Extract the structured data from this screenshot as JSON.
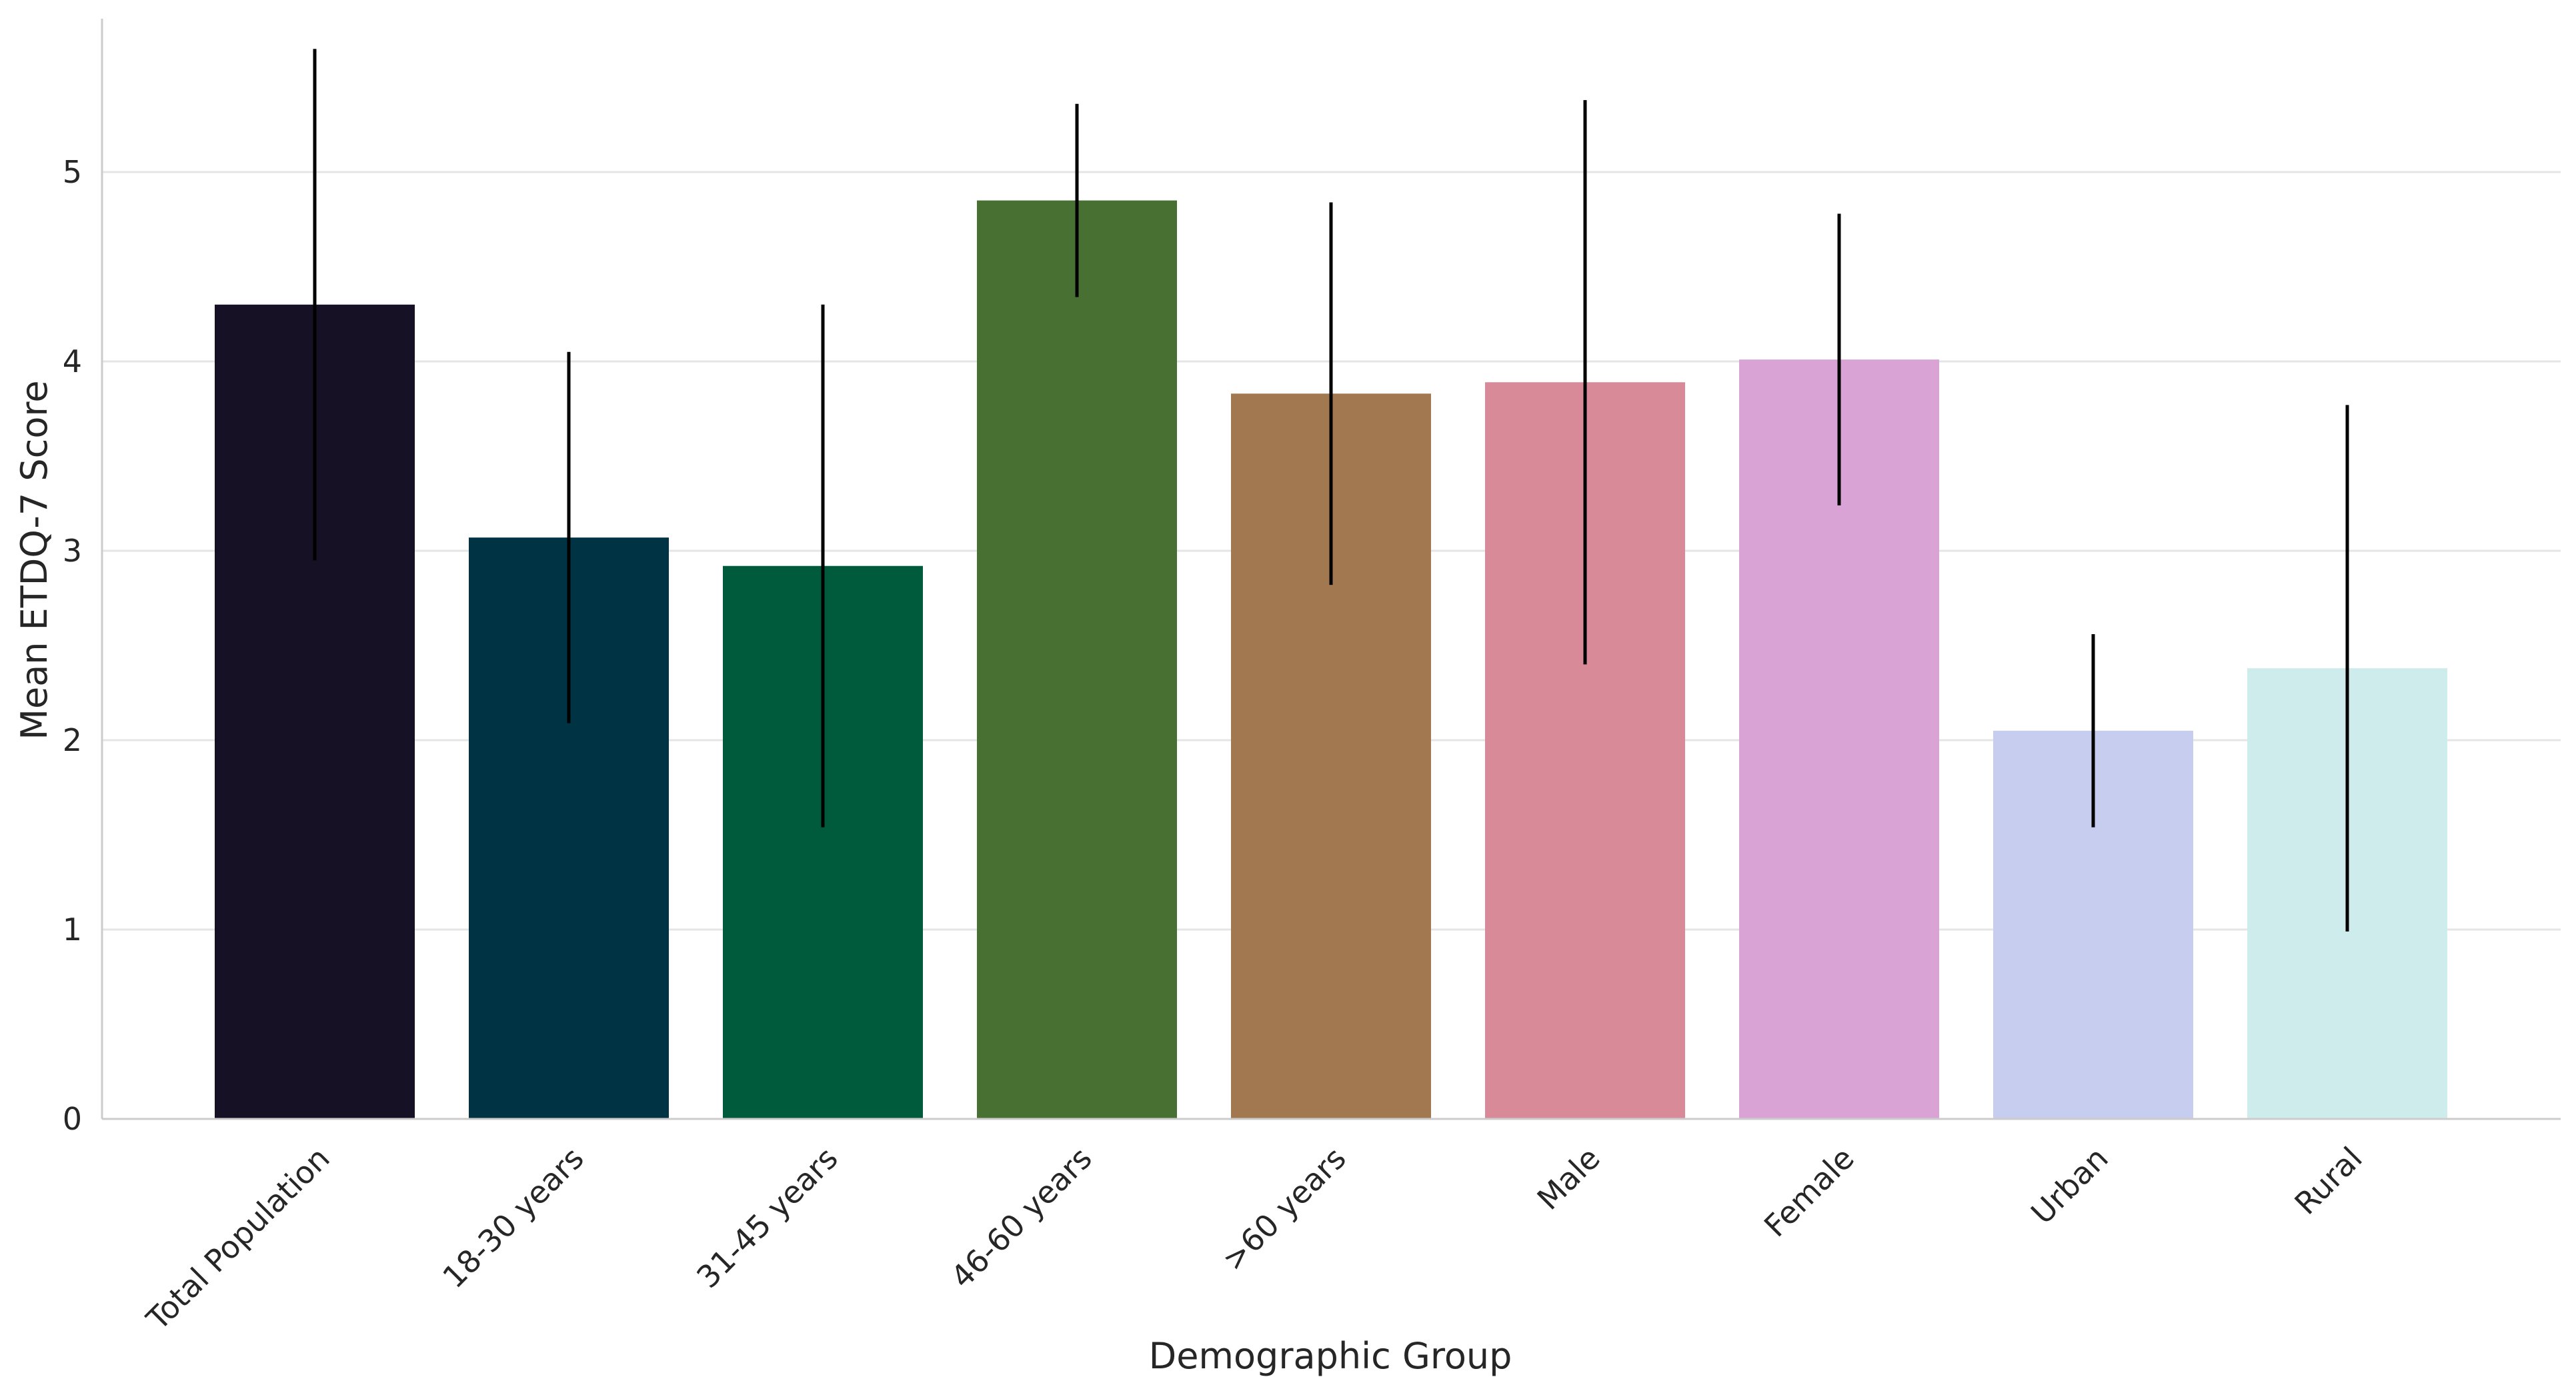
{
  "chart_data": {
    "type": "bar",
    "title": "",
    "xlabel": "Demographic Group",
    "ylabel": "Mean ETDQ-7 Score",
    "ylim": [
      0,
      5.8
    ],
    "yticks": [
      0,
      1,
      2,
      3,
      4,
      5
    ],
    "grid": true,
    "categories": [
      "Total Population",
      "18-30 years",
      "31-45 years",
      "46-60 years",
      ">60 years",
      "Male",
      "Female",
      "Urban",
      "Rural"
    ],
    "values": [
      4.3,
      3.07,
      2.92,
      4.85,
      3.83,
      3.89,
      4.01,
      2.05,
      2.38
    ],
    "error": [
      1.35,
      0.98,
      1.38,
      0.51,
      1.01,
      1.49,
      0.77,
      0.51,
      1.39
    ],
    "colors": [
      "#171126",
      "#003444",
      "#005a3c",
      "#477032",
      "#a17850",
      "#d88a99",
      "#d9a3d6",
      "#c6cdef",
      "#cfecec"
    ]
  }
}
